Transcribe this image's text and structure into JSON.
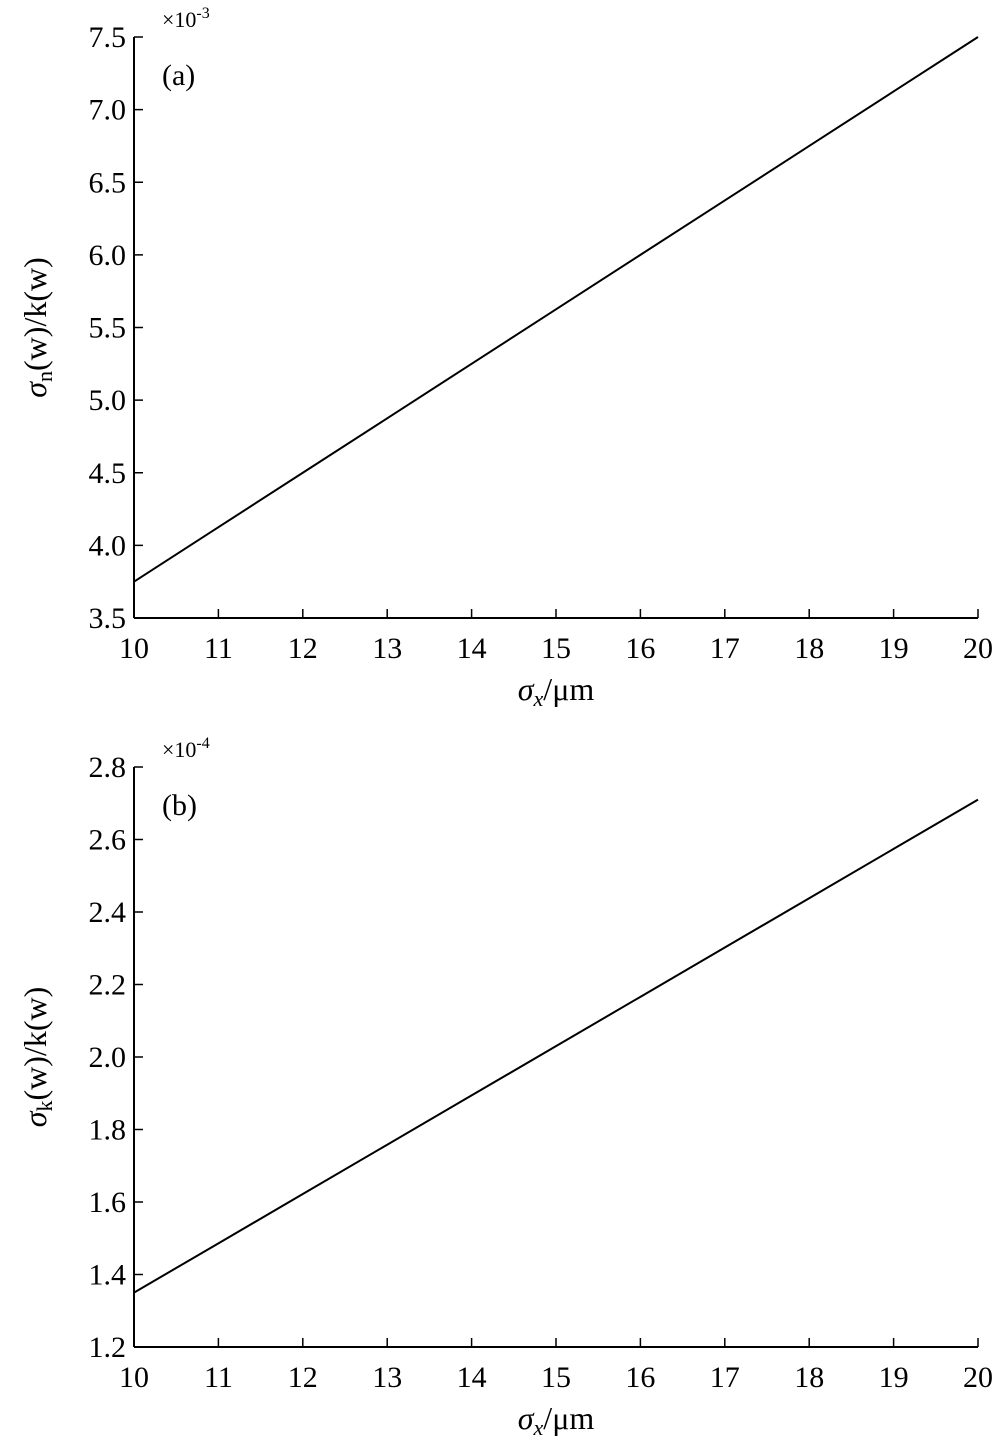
{
  "chart_data": [
    {
      "type": "line",
      "panel_label": "(a)",
      "multiplier": "×10",
      "multiplier_exponent": "-3",
      "ylabel_main": "σ",
      "ylabel_sub": "n",
      "ylabel_rest": "(w)/k(w)",
      "xlabel_main": "σ",
      "xlabel_sub": "x",
      "xlabel_rest": "/μm",
      "xlim": [
        10,
        20
      ],
      "ylim": [
        3.5,
        7.5
      ],
      "xticks": [
        10,
        11,
        12,
        13,
        14,
        15,
        16,
        17,
        18,
        19,
        20
      ],
      "xtick_labels": [
        "10",
        "11",
        "12",
        "13",
        "14",
        "15",
        "16",
        "17",
        "18",
        "19",
        "20"
      ],
      "yticks": [
        3.5,
        4.0,
        4.5,
        5.0,
        5.5,
        6.0,
        6.5,
        7.0,
        7.5
      ],
      "ytick_labels": [
        "3.5",
        "4.0",
        "4.5",
        "5.0",
        "5.5",
        "6.0",
        "6.5",
        "7.0",
        "7.5"
      ],
      "series": [
        {
          "x": [
            10,
            11,
            12,
            13,
            14,
            15,
            16,
            17,
            18,
            19,
            20
          ],
          "y": [
            3.75,
            4.125,
            4.5,
            4.875,
            5.25,
            5.625,
            6.0,
            6.375,
            6.75,
            7.125,
            7.5
          ]
        }
      ],
      "color": "#000000",
      "grid": false,
      "legend": "none"
    },
    {
      "type": "line",
      "panel_label": "(b)",
      "multiplier": "×10",
      "multiplier_exponent": "-4",
      "ylabel_main": "σ",
      "ylabel_sub": "k",
      "ylabel_rest": "(w)/k(w)",
      "xlabel_main": "σ",
      "xlabel_sub": "x",
      "xlabel_rest": "/μm",
      "xlim": [
        10,
        20
      ],
      "ylim": [
        1.2,
        2.8
      ],
      "xticks": [
        10,
        11,
        12,
        13,
        14,
        15,
        16,
        17,
        18,
        19,
        20
      ],
      "xtick_labels": [
        "10",
        "11",
        "12",
        "13",
        "14",
        "15",
        "16",
        "17",
        "18",
        "19",
        "20"
      ],
      "yticks": [
        1.2,
        1.4,
        1.6,
        1.8,
        2.0,
        2.2,
        2.4,
        2.6,
        2.8
      ],
      "ytick_labels": [
        "1.2",
        "1.4",
        "1.6",
        "1.8",
        "2.0",
        "2.2",
        "2.4",
        "2.6",
        "2.8"
      ],
      "series": [
        {
          "x": [
            10,
            11,
            12,
            13,
            14,
            15,
            16,
            17,
            18,
            19,
            20
          ],
          "y": [
            1.35,
            1.486,
            1.622,
            1.758,
            1.894,
            2.03,
            2.166,
            2.302,
            2.438,
            2.574,
            2.71
          ]
        }
      ],
      "color": "#000000",
      "grid": false,
      "legend": "none"
    }
  ]
}
